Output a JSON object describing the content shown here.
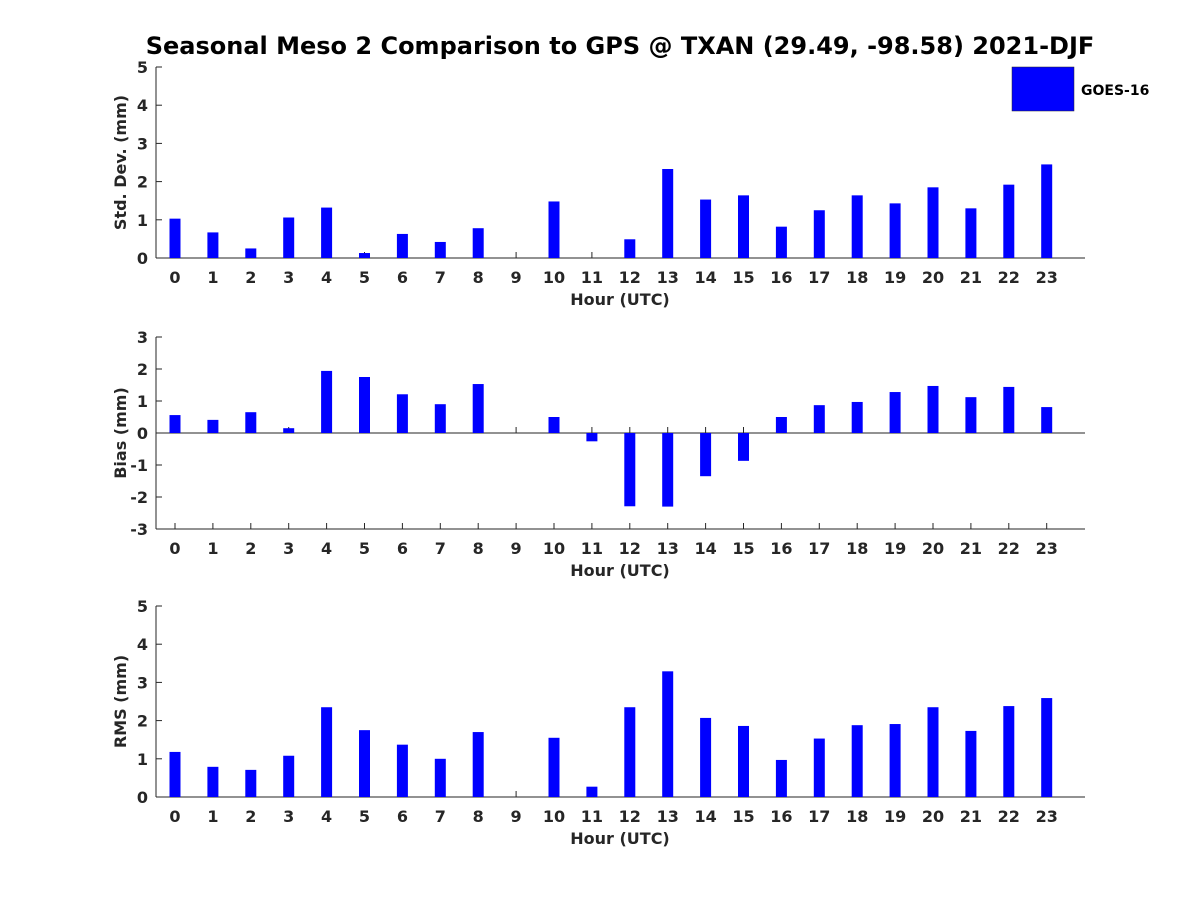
{
  "figure": {
    "title": "Seasonal Meso 2 Comparison to GPS @ TXAN (29.49, -98.58) 2021-DJF",
    "legend": {
      "label": "GOES-16",
      "placement": "top-right",
      "color": "#0000ff"
    }
  },
  "chart_data": [
    {
      "type": "bar",
      "xlabel": "Hour (UTC)",
      "ylabel": "Std. Dev. (mm)",
      "categories": [
        "0",
        "1",
        "2",
        "3",
        "4",
        "5",
        "6",
        "7",
        "8",
        "9",
        "10",
        "11",
        "12",
        "13",
        "14",
        "15",
        "16",
        "17",
        "18",
        "19",
        "20",
        "21",
        "22",
        "23"
      ],
      "ylim": [
        0,
        5
      ],
      "yticks": [
        "0",
        "1",
        "2",
        "3",
        "4",
        "5"
      ],
      "series": [
        {
          "name": "GOES-16",
          "values": [
            1.03,
            0.67,
            0.25,
            1.06,
            1.32,
            0.13,
            0.63,
            0.42,
            0.78,
            0,
            1.48,
            0,
            0.49,
            2.33,
            1.53,
            1.64,
            0.82,
            1.25,
            1.64,
            1.43,
            1.85,
            1.3,
            1.92,
            2.45
          ]
        }
      ]
    },
    {
      "type": "bar",
      "xlabel": "Hour (UTC)",
      "ylabel": "Bias (mm)",
      "categories": [
        "0",
        "1",
        "2",
        "3",
        "4",
        "5",
        "6",
        "7",
        "8",
        "9",
        "10",
        "11",
        "12",
        "13",
        "14",
        "15",
        "16",
        "17",
        "18",
        "19",
        "20",
        "21",
        "22",
        "23"
      ],
      "ylim": [
        -3,
        3
      ],
      "yticks": [
        "-3",
        "-2",
        "-1",
        "0",
        "1",
        "2",
        "3"
      ],
      "series": [
        {
          "name": "GOES-16",
          "values": [
            0.56,
            0.41,
            0.65,
            0.15,
            1.94,
            1.75,
            1.21,
            0.9,
            1.53,
            0,
            0.5,
            -0.26,
            -2.29,
            -2.3,
            -1.35,
            -0.87,
            0.5,
            0.87,
            0.97,
            1.28,
            1.47,
            1.12,
            1.44,
            0.81
          ]
        }
      ]
    },
    {
      "type": "bar",
      "xlabel": "Hour (UTC)",
      "ylabel": "RMS (mm)",
      "categories": [
        "0",
        "1",
        "2",
        "3",
        "4",
        "5",
        "6",
        "7",
        "8",
        "9",
        "10",
        "11",
        "12",
        "13",
        "14",
        "15",
        "16",
        "17",
        "18",
        "19",
        "20",
        "21",
        "22",
        "23"
      ],
      "ylim": [
        0,
        5
      ],
      "yticks": [
        "0",
        "1",
        "2",
        "3",
        "4",
        "5"
      ],
      "series": [
        {
          "name": "GOES-16",
          "values": [
            1.18,
            0.79,
            0.71,
            1.08,
            2.35,
            1.75,
            1.37,
            1.0,
            1.7,
            0,
            1.55,
            0.27,
            2.35,
            3.29,
            2.07,
            1.86,
            0.97,
            1.53,
            1.88,
            1.91,
            2.35,
            1.73,
            2.38,
            2.59
          ]
        }
      ]
    }
  ]
}
